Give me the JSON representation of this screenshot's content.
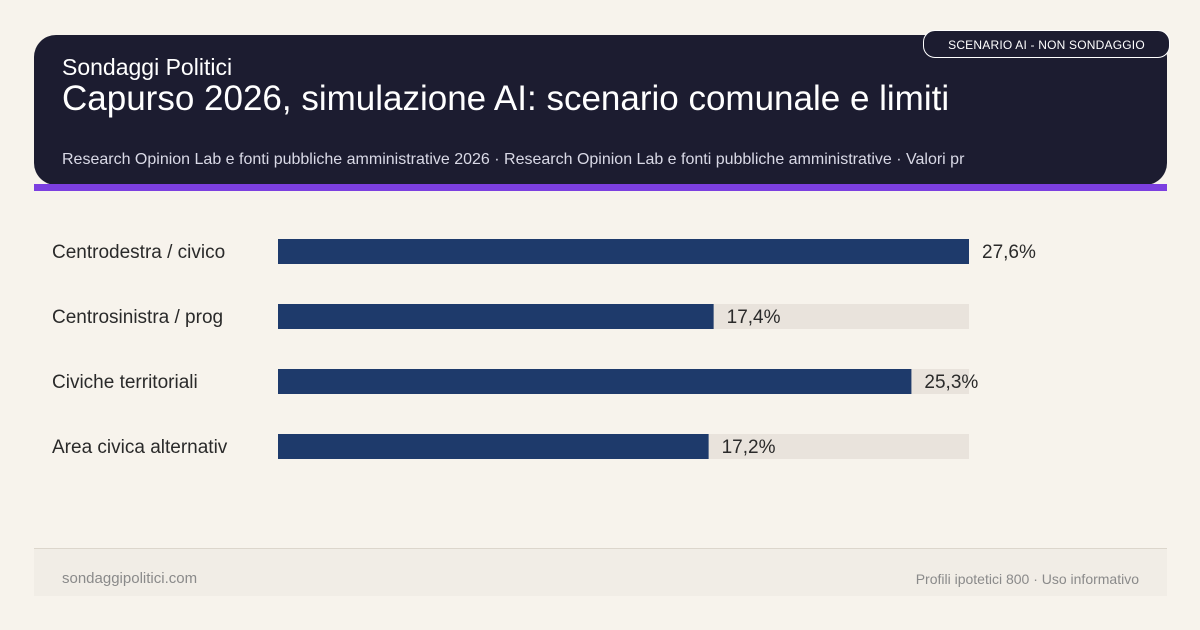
{
  "header": {
    "site_label": "Sondaggi Politici",
    "title": "Capurso 2026, simulazione AI: scenario comunale e limiti",
    "subtitle": "Research Opinion Lab e fonti pubbliche amministrative 2026 · Research Opinion Lab e fonti pubbliche amministrative · Valori pr",
    "badge": "SCENARIO AI - NON SONDAGGIO"
  },
  "colors": {
    "header_bg": "#1c1c30",
    "accent": "#7c3fe0",
    "bar": "#1e3a6b",
    "track": "#e9e3dc",
    "background": "#f7f3ec"
  },
  "chart_data": {
    "type": "bar",
    "orientation": "horizontal",
    "categories": [
      "Centrodestra / civico",
      "Centrosinistra / prog",
      "Civiche territoriali",
      "Area civica alternativ"
    ],
    "values": [
      27.6,
      17.4,
      25.3,
      17.2
    ],
    "value_labels": [
      "27,6%",
      "17,4%",
      "25,3%",
      "17,2%"
    ],
    "unit": "%",
    "xlim": [
      0,
      27.6
    ],
    "grid": false,
    "legend": "none"
  },
  "footer": {
    "left": "sondaggipolitici.com",
    "right": "Profili ipotetici 800 · Uso informativo"
  }
}
